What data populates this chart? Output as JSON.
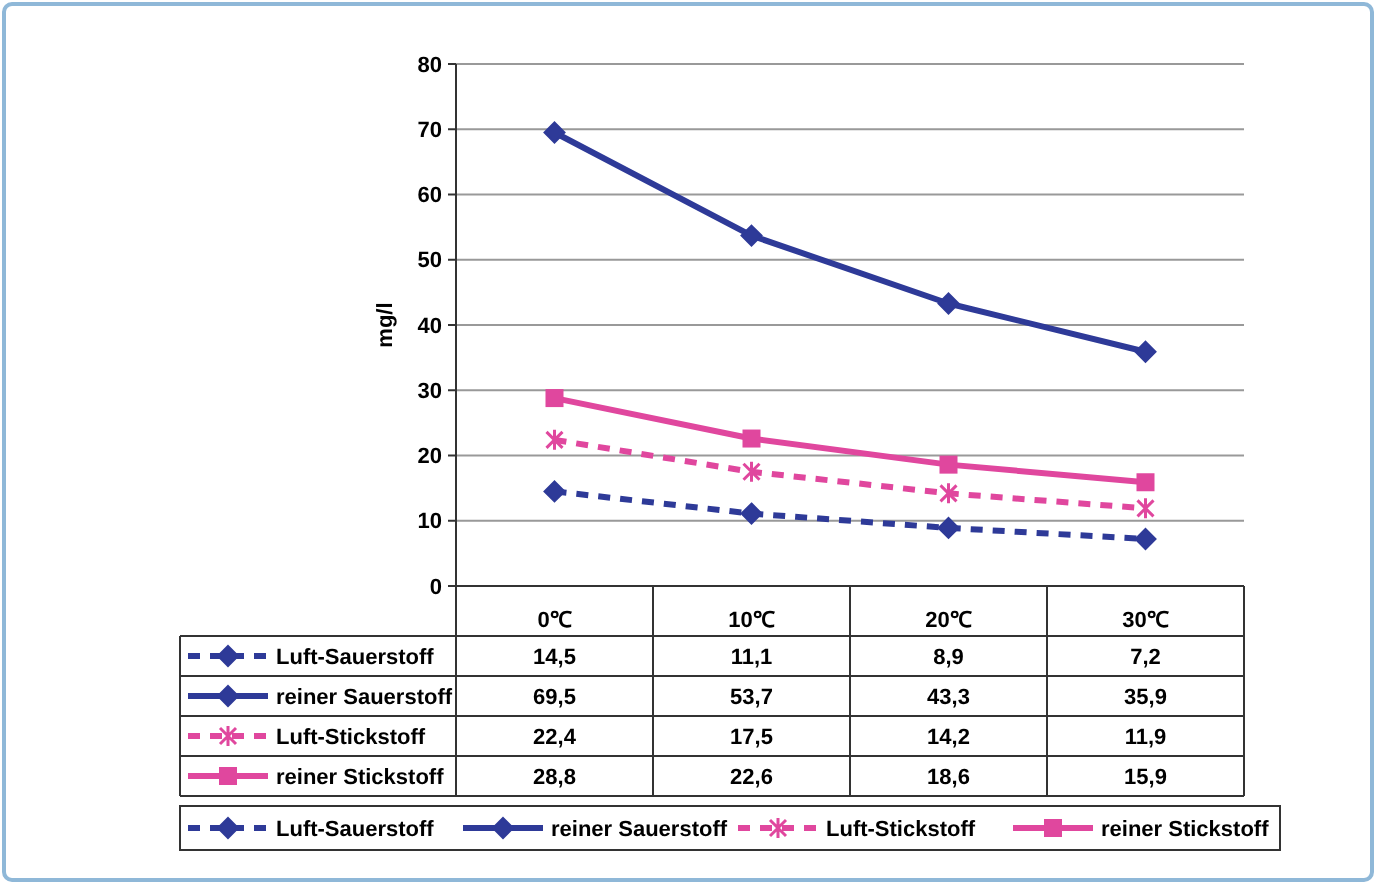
{
  "chart_data": {
    "type": "line",
    "ylabel": "mg/l",
    "categories": [
      "0℃",
      "10℃",
      "20℃",
      "30℃"
    ],
    "ylim": [
      0,
      80
    ],
    "yticks": [
      0,
      10,
      20,
      30,
      40,
      50,
      60,
      70,
      80
    ],
    "grid": "y",
    "legend": "bottom",
    "series": [
      {
        "name": "Luft-Sauerstoff",
        "color": "#2e3a98",
        "values": [
          14.5,
          11.1,
          8.9,
          7.2
        ],
        "value_labels": [
          "14,5",
          "11,1",
          "8,9",
          "7,2"
        ],
        "marker": "diamond",
        "line_style": "dashed"
      },
      {
        "name": "reiner Sauerstoff",
        "color": "#2e3a98",
        "values": [
          69.5,
          53.7,
          43.3,
          35.9
        ],
        "value_labels": [
          "69,5",
          "53,7",
          "43,3",
          "35,9"
        ],
        "marker": "diamond",
        "line_style": "solid"
      },
      {
        "name": "Luft-Stickstoff",
        "color": "#e0479e",
        "values": [
          22.4,
          17.5,
          14.2,
          11.9
        ],
        "value_labels": [
          "22,4",
          "17,5",
          "14,2",
          "11,9"
        ],
        "marker": "cross",
        "line_style": "dashed"
      },
      {
        "name": "reiner Stickstoff",
        "color": "#e0479e",
        "values": [
          28.8,
          22.6,
          18.6,
          15.9
        ],
        "value_labels": [
          "28,8",
          "22,6",
          "18,6",
          "15,9"
        ],
        "marker": "square",
        "line_style": "solid"
      }
    ]
  }
}
